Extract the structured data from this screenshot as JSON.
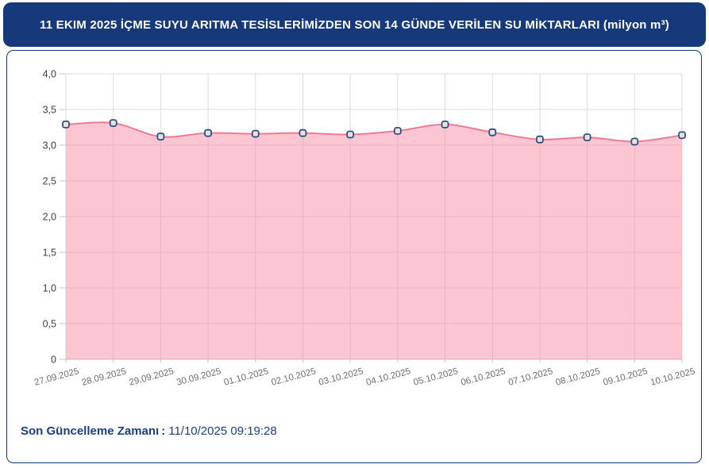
{
  "header": {
    "title": "11 EKIM 2025 İÇME SUYU ARITMA TESİSLERİMİZDEN SON 14 GÜNDE VERİLEN SU MİKTARLARI (milyon m³)"
  },
  "footer": {
    "label": "Son Güncelleme Zamanı",
    "separator": ":",
    "value": "11/10/2025 09:19:28"
  },
  "colors": {
    "header_bg": "#16397b",
    "panel_border": "#16397b",
    "footer_text": "#1a3e88",
    "line": "#ee7b96",
    "area_fill": "#f78ca6",
    "area_opacity": "0.5",
    "grid": "#dcdcdc",
    "axis": "#c4c4c4",
    "marker_stroke": "#2c4f8c",
    "marker_fill": "#e7e2d6",
    "y_label": "#3f3f3f",
    "x_label": "#6e6e6e"
  },
  "chart_data": {
    "type": "area",
    "title": "",
    "xlabel": "",
    "ylabel": "",
    "categories": [
      "27.09.2025",
      "28.09.2025",
      "29.09.2025",
      "30.09.2025",
      "01.10.2025",
      "02.10.2025",
      "03.10.2025",
      "04.10.2025",
      "05.10.2025",
      "06.10.2025",
      "07.10.2025",
      "08.10.2025",
      "09.10.2025",
      "10.10.2025"
    ],
    "values": [
      3.29,
      3.31,
      3.12,
      3.17,
      3.16,
      3.17,
      3.15,
      3.2,
      3.29,
      3.18,
      3.08,
      3.11,
      3.05,
      3.14
    ],
    "ylim": [
      0,
      4
    ],
    "ytick_step": 0.5,
    "ytick_labels": [
      "0",
      "0,5",
      "1,0",
      "1,5",
      "2,0",
      "2,5",
      "3,0",
      "3,5",
      "4,0"
    ],
    "grid": true,
    "legend_position": "none",
    "x_label_rotation": -15,
    "decimal_separator": ","
  }
}
